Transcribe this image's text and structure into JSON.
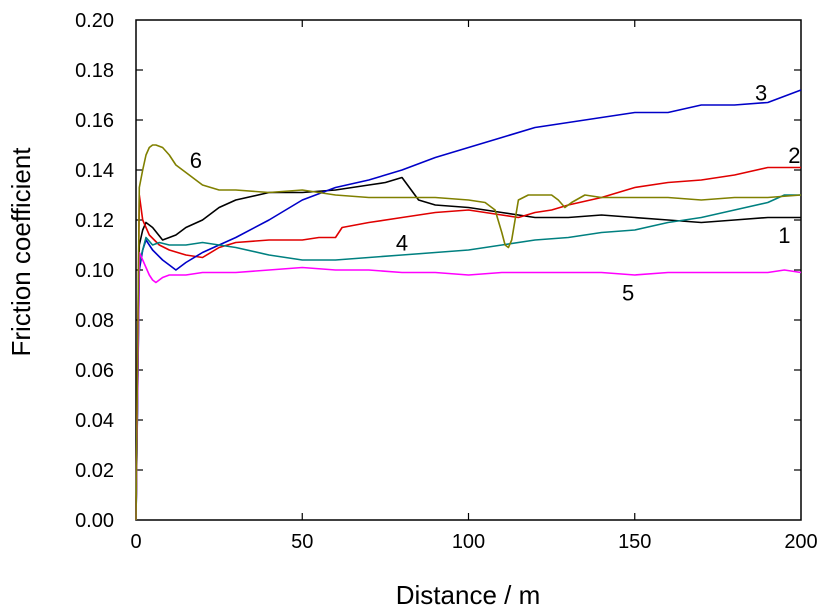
{
  "chart_data": {
    "type": "line",
    "title": "",
    "xlabel": "Distance / m",
    "ylabel": "Friction coefficient",
    "xlim": [
      0,
      200
    ],
    "ylim": [
      0.0,
      0.2
    ],
    "xticks": [
      "0",
      "50",
      "100",
      "150",
      "200"
    ],
    "yticks": [
      "0.00",
      "0.02",
      "0.04",
      "0.06",
      "0.08",
      "0.10",
      "0.12",
      "0.14",
      "0.16",
      "0.18",
      "0.20"
    ],
    "grid": false,
    "legend": "none",
    "series": [
      {
        "name": "1",
        "color": "#000000",
        "x": [
          0,
          1,
          2,
          3,
          5,
          8,
          10,
          12,
          15,
          20,
          25,
          30,
          40,
          50,
          60,
          70,
          75,
          80,
          85,
          90,
          100,
          110,
          120,
          130,
          140,
          150,
          160,
          170,
          180,
          190,
          195,
          200
        ],
        "y": [
          0.0,
          0.11,
          0.116,
          0.119,
          0.117,
          0.112,
          0.113,
          0.114,
          0.117,
          0.12,
          0.125,
          0.128,
          0.131,
          0.131,
          0.132,
          0.134,
          0.135,
          0.137,
          0.128,
          0.126,
          0.125,
          0.123,
          0.121,
          0.121,
          0.122,
          0.121,
          0.12,
          0.119,
          0.12,
          0.121,
          0.121,
          0.121
        ]
      },
      {
        "name": "2",
        "color": "#e00000",
        "x": [
          0,
          1,
          2,
          4,
          7,
          10,
          15,
          20,
          25,
          30,
          40,
          50,
          55,
          60,
          62,
          70,
          80,
          90,
          100,
          110,
          115,
          120,
          125,
          130,
          140,
          150,
          160,
          170,
          180,
          190,
          200
        ],
        "y": [
          0.0,
          0.13,
          0.12,
          0.114,
          0.11,
          0.108,
          0.106,
          0.105,
          0.109,
          0.111,
          0.112,
          0.112,
          0.113,
          0.113,
          0.117,
          0.119,
          0.121,
          0.123,
          0.124,
          0.122,
          0.121,
          0.123,
          0.124,
          0.126,
          0.129,
          0.133,
          0.135,
          0.136,
          0.138,
          0.141,
          0.141
        ]
      },
      {
        "name": "3",
        "color": "#0000c8",
        "x": [
          0,
          1,
          2,
          3,
          5,
          8,
          10,
          12,
          15,
          20,
          25,
          30,
          40,
          50,
          60,
          70,
          80,
          90,
          100,
          110,
          120,
          130,
          140,
          150,
          160,
          170,
          180,
          190,
          200
        ],
        "y": [
          0.0,
          0.1,
          0.108,
          0.112,
          0.108,
          0.104,
          0.102,
          0.1,
          0.103,
          0.107,
          0.11,
          0.113,
          0.12,
          0.128,
          0.133,
          0.136,
          0.14,
          0.145,
          0.149,
          0.153,
          0.157,
          0.159,
          0.161,
          0.163,
          0.163,
          0.166,
          0.166,
          0.167,
          0.172
        ]
      },
      {
        "name": "4",
        "color": "#008080",
        "x": [
          0,
          1,
          2,
          3,
          5,
          7,
          10,
          15,
          20,
          25,
          30,
          40,
          50,
          60,
          70,
          80,
          90,
          100,
          110,
          120,
          130,
          140,
          150,
          160,
          170,
          180,
          190,
          195,
          200
        ],
        "y": [
          0.0,
          0.103,
          0.108,
          0.113,
          0.11,
          0.111,
          0.11,
          0.11,
          0.111,
          0.11,
          0.109,
          0.106,
          0.104,
          0.104,
          0.105,
          0.106,
          0.107,
          0.108,
          0.11,
          0.112,
          0.113,
          0.115,
          0.116,
          0.119,
          0.121,
          0.124,
          0.127,
          0.13,
          0.13
        ]
      },
      {
        "name": "5",
        "color": "#ff00ff",
        "x": [
          0,
          1,
          2,
          3,
          4,
          5,
          6,
          8,
          10,
          15,
          20,
          30,
          40,
          50,
          60,
          70,
          80,
          90,
          100,
          110,
          120,
          130,
          140,
          150,
          160,
          170,
          180,
          190,
          195,
          200
        ],
        "y": [
          0.0,
          0.107,
          0.104,
          0.101,
          0.098,
          0.096,
          0.095,
          0.097,
          0.098,
          0.098,
          0.099,
          0.099,
          0.1,
          0.101,
          0.1,
          0.1,
          0.099,
          0.099,
          0.098,
          0.099,
          0.099,
          0.099,
          0.099,
          0.098,
          0.099,
          0.099,
          0.099,
          0.099,
          0.1,
          0.099
        ]
      },
      {
        "name": "6",
        "color": "#808000",
        "x": [
          0,
          1,
          2,
          3,
          4,
          5,
          6,
          8,
          10,
          12,
          15,
          20,
          25,
          30,
          40,
          50,
          60,
          70,
          80,
          90,
          100,
          105,
          108,
          110,
          111,
          112,
          113,
          115,
          118,
          120,
          125,
          127,
          129,
          131,
          135,
          140,
          150,
          160,
          170,
          180,
          190,
          200
        ],
        "y": [
          0.0,
          0.133,
          0.14,
          0.146,
          0.149,
          0.15,
          0.15,
          0.149,
          0.146,
          0.142,
          0.139,
          0.134,
          0.132,
          0.132,
          0.131,
          0.132,
          0.13,
          0.129,
          0.129,
          0.129,
          0.128,
          0.127,
          0.124,
          0.115,
          0.11,
          0.109,
          0.112,
          0.128,
          0.13,
          0.13,
          0.13,
          0.128,
          0.125,
          0.127,
          0.13,
          0.129,
          0.129,
          0.129,
          0.128,
          0.129,
          0.129,
          0.13
        ]
      }
    ]
  }
}
